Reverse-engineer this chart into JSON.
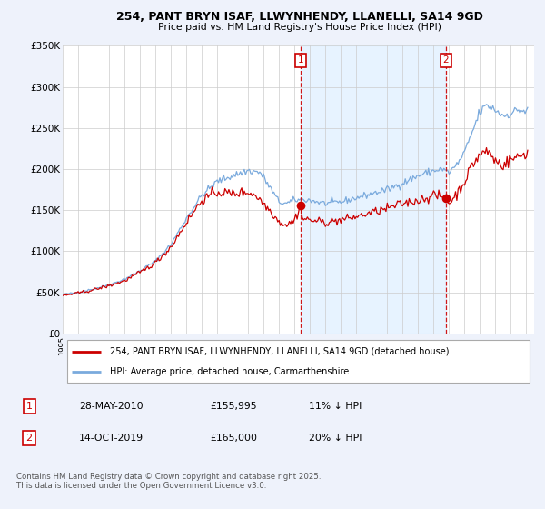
{
  "title": "254, PANT BRYN ISAF, LLWYNHENDY, LLANELLI, SA14 9GD",
  "subtitle": "Price paid vs. HM Land Registry's House Price Index (HPI)",
  "bg_color": "#eef2fb",
  "plot_bg_color": "#ffffff",
  "red_line_color": "#cc0000",
  "blue_line_color": "#7aaadd",
  "vline_color": "#cc0000",
  "shade_color": "#ddeeff",
  "ylim": [
    0,
    350000
  ],
  "yticks": [
    0,
    50000,
    100000,
    150000,
    200000,
    250000,
    300000,
    350000
  ],
  "ytick_labels": [
    "£0",
    "£50K",
    "£100K",
    "£150K",
    "£200K",
    "£250K",
    "£300K",
    "£350K"
  ],
  "xlim_start": 1995.0,
  "xlim_end": 2025.5,
  "marker1_x": 2010.4,
  "marker2_x": 2019.8,
  "marker1_label": "1",
  "marker2_label": "2",
  "legend_line1": "254, PANT BRYN ISAF, LLWYNHENDY, LLANELLI, SA14 9GD (detached house)",
  "legend_line2": "HPI: Average price, detached house, Carmarthenshire",
  "table_row1_num": "1",
  "table_row1_date": "28-MAY-2010",
  "table_row1_price": "£155,995",
  "table_row1_hpi": "11% ↓ HPI",
  "table_row2_num": "2",
  "table_row2_date": "14-OCT-2019",
  "table_row2_price": "£165,000",
  "table_row2_hpi": "20% ↓ HPI",
  "purchase1_x": 2010.4,
  "purchase1_y": 155995,
  "purchase2_x": 2019.8,
  "purchase2_y": 165000,
  "footer": "Contains HM Land Registry data © Crown copyright and database right 2025.\nThis data is licensed under the Open Government Licence v3.0."
}
